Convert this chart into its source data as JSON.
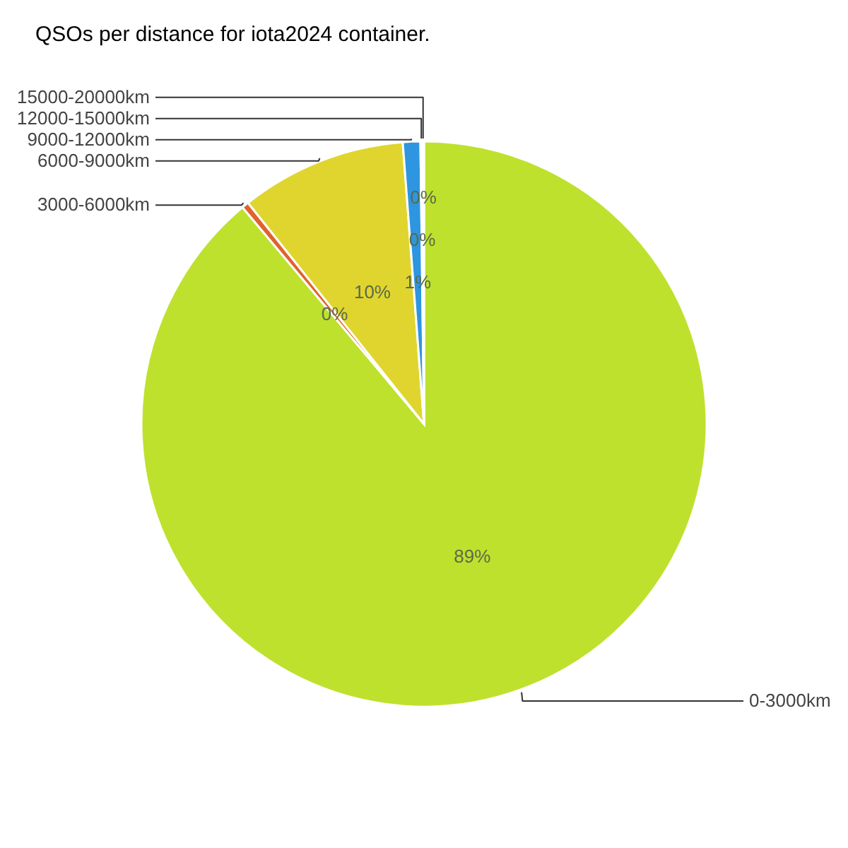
{
  "chart_data": {
    "type": "pie",
    "title": "QSOs per distance for iota2024 container.",
    "categories": [
      "0-3000km",
      "3000-6000km",
      "6000-9000km",
      "9000-12000km",
      "12000-15000km",
      "15000-20000km"
    ],
    "values": [
      88.9,
      0.4,
      9.5,
      1.0,
      0.1,
      0.1
    ],
    "value_labels": [
      "89%",
      "0%",
      "10%",
      "1%",
      "0%",
      "0%"
    ],
    "colors": [
      "#bee12e",
      "#e0632e",
      "#e0d52e",
      "#2e96e0",
      "#2ee0c0",
      "#8a2ee0"
    ],
    "legend": false
  }
}
